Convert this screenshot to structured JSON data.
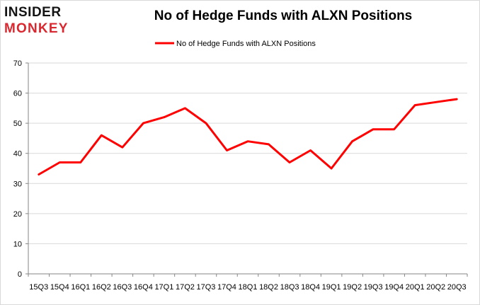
{
  "brand": {
    "logo_top": "INSIDER",
    "logo_bottom": "MONKEY"
  },
  "colors": {
    "line": "#ff0000",
    "grid": "#d9d9d9",
    "axis": "#868686",
    "brand_red": "#d9282f"
  },
  "chart_data": {
    "type": "line",
    "title": "No of Hedge Funds with ALXN Positions",
    "xlabel": "",
    "ylabel": "",
    "ylim": [
      0,
      70
    ],
    "yticks": [
      0,
      10,
      20,
      30,
      40,
      50,
      60,
      70
    ],
    "grid": true,
    "legend_position": "top-center",
    "categories": [
      "15Q3",
      "15Q4",
      "16Q1",
      "16Q2",
      "16Q3",
      "16Q4",
      "17Q1",
      "17Q2",
      "17Q3",
      "17Q4",
      "18Q1",
      "18Q2",
      "18Q3",
      "18Q4",
      "19Q1",
      "19Q2",
      "19Q3",
      "19Q4",
      "20Q1",
      "20Q2",
      "20Q3"
    ],
    "series": [
      {
        "name": "No of Hedge Funds with ALXN Positions",
        "values": [
          33,
          37,
          37,
          46,
          42,
          50,
          52,
          55,
          50,
          41,
          44,
          43,
          37,
          41,
          35,
          44,
          48,
          48,
          56,
          57,
          58
        ]
      }
    ]
  }
}
